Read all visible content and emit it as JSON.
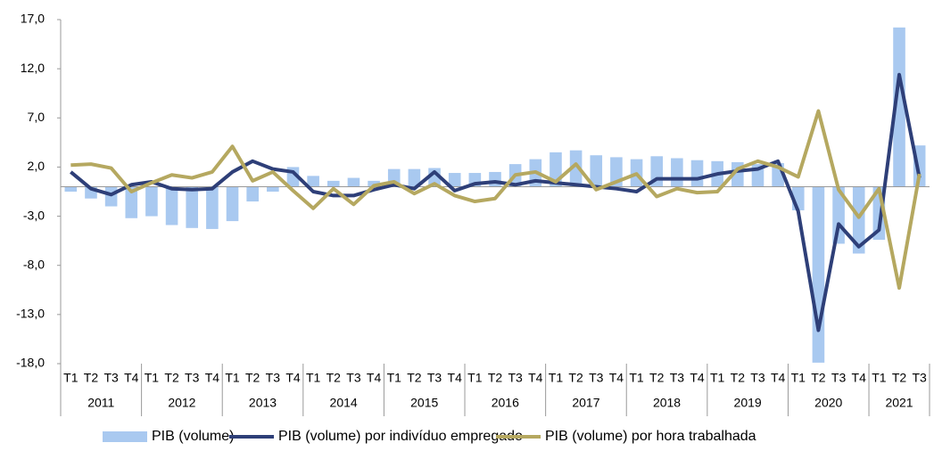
{
  "chart_data": {
    "type": "bar-line",
    "categories": [
      "T1",
      "T2",
      "T3",
      "T4",
      "T1",
      "T2",
      "T3",
      "T4",
      "T1",
      "T2",
      "T3",
      "T4",
      "T1",
      "T2",
      "T3",
      "T4",
      "T1",
      "T2",
      "T3",
      "T4",
      "T1",
      "T2",
      "T3",
      "T4",
      "T1",
      "T2",
      "T3",
      "T4",
      "T1",
      "T2",
      "T3",
      "T4",
      "T1",
      "T2",
      "T3",
      "T4",
      "T1",
      "T2",
      "T3",
      "T4",
      "T1",
      "T2",
      "T3"
    ],
    "groups": [
      "2011",
      "2012",
      "2013",
      "2014",
      "2015",
      "2016",
      "2017",
      "2018",
      "2019",
      "2020",
      "2021"
    ],
    "series": [
      {
        "name": "PIB (volume)",
        "kind": "bar",
        "color": "#a9c9f0",
        "values": [
          -0.5,
          -1.2,
          -2.0,
          -3.2,
          -3.0,
          -3.9,
          -4.2,
          -4.3,
          -3.5,
          -1.5,
          -0.5,
          2.0,
          1.1,
          0.6,
          0.9,
          0.6,
          1.8,
          1.8,
          1.9,
          1.4,
          1.4,
          1.5,
          2.3,
          2.8,
          3.5,
          3.7,
          3.2,
          3.0,
          2.8,
          3.1,
          2.9,
          2.7,
          2.6,
          2.5,
          2.3,
          2.4,
          -2.4,
          -17.9,
          -5.8,
          -6.8,
          -5.4,
          16.2,
          4.2
        ]
      },
      {
        "name": "PIB (volume) por indivíduo empregado",
        "kind": "line",
        "color": "#2e3f78",
        "values": [
          1.5,
          -0.2,
          -0.8,
          0.2,
          0.5,
          -0.2,
          -0.3,
          -0.2,
          1.5,
          2.6,
          1.8,
          1.5,
          -0.5,
          -0.9,
          -0.9,
          -0.3,
          0.2,
          -0.2,
          1.5,
          -0.4,
          0.3,
          0.5,
          0.2,
          0.6,
          0.4,
          0.2,
          0.0,
          -0.2,
          -0.5,
          0.8,
          0.8,
          0.8,
          1.3,
          1.6,
          1.8,
          2.6,
          -2.5,
          -14.6,
          -3.8,
          -6.1,
          -4.4,
          11.4,
          0.9
        ]
      },
      {
        "name": "PIB (volume) por hora trabalhada",
        "kind": "line",
        "color": "#b5a860",
        "values": [
          2.2,
          2.3,
          1.9,
          -0.5,
          0.4,
          1.2,
          0.9,
          1.5,
          4.1,
          0.6,
          1.5,
          -0.4,
          -2.2,
          -0.2,
          -1.8,
          0.1,
          0.5,
          -0.7,
          0.3,
          -0.9,
          -1.5,
          -1.2,
          1.2,
          1.5,
          0.5,
          2.3,
          -0.3,
          0.5,
          1.3,
          -1.0,
          -0.2,
          -0.6,
          -0.5,
          1.8,
          2.6,
          2.0,
          1.0,
          7.7,
          -0.3,
          -3.1,
          -0.2,
          -10.3,
          1.3
        ]
      }
    ],
    "ylim": [
      -18,
      17
    ],
    "yticks": [
      {
        "value": -18,
        "label": "-18,0"
      },
      {
        "value": -13,
        "label": "-13,0"
      },
      {
        "value": -8,
        "label": "-8,0"
      },
      {
        "value": -3,
        "label": "-3,0"
      },
      {
        "value": 2,
        "label": "2,0"
      },
      {
        "value": 7,
        "label": "7,0"
      },
      {
        "value": 12,
        "label": "12,0"
      },
      {
        "value": 17,
        "label": "17,0"
      }
    ],
    "legend": "bottom"
  }
}
